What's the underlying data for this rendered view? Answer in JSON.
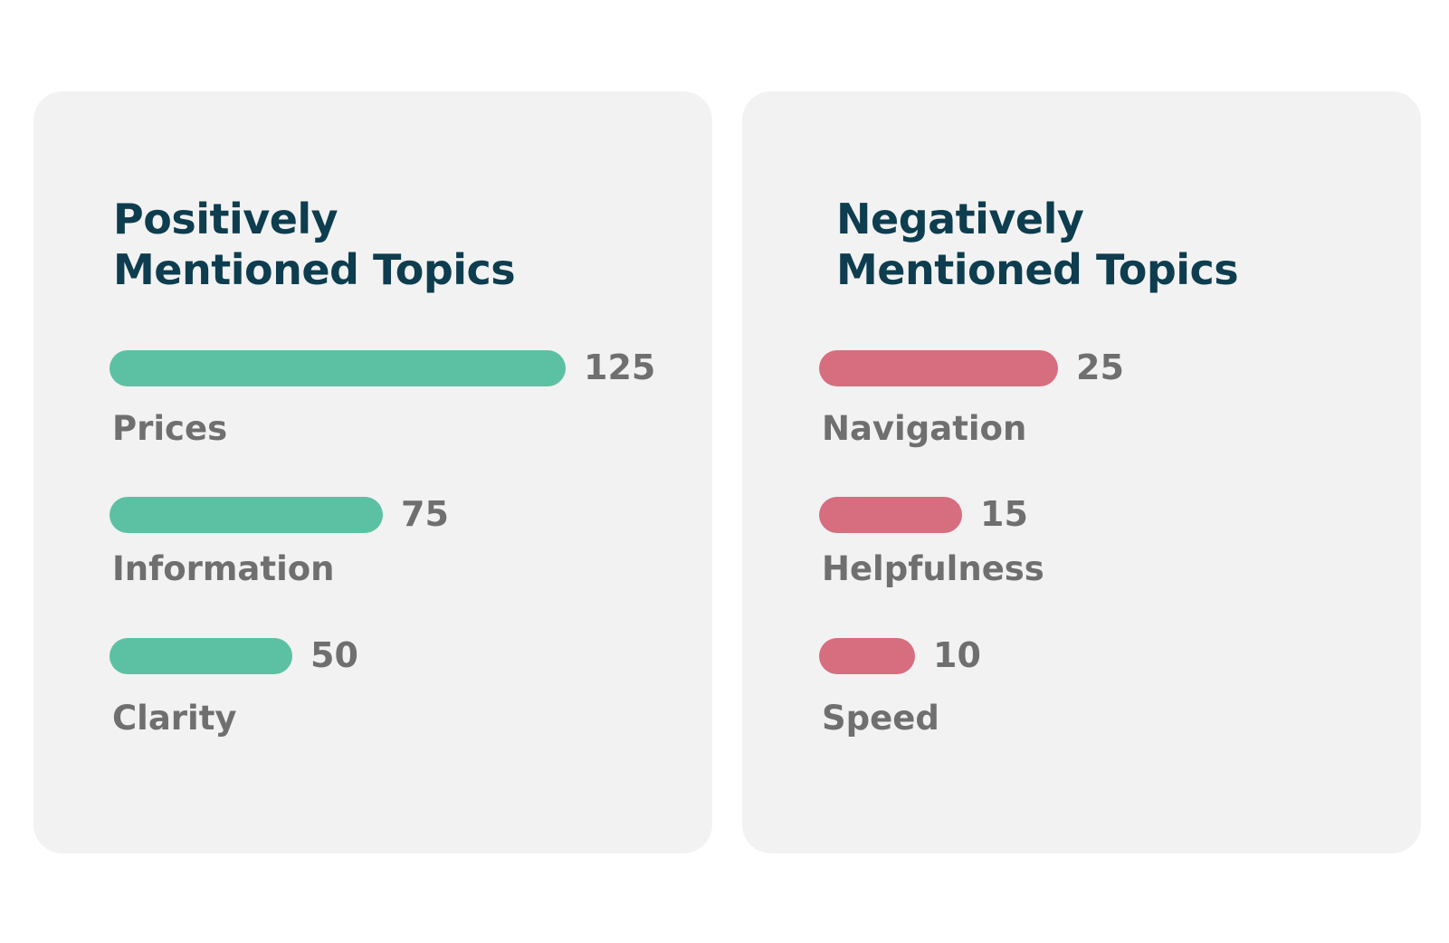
{
  "colors": {
    "positive_bar": "#5cc1a2",
    "negative_bar": "#d66e80",
    "title": "#0d3d4e",
    "label": "#6f6f6f",
    "card_background": "#f2f2f2"
  },
  "chart_data": [
    {
      "type": "bar",
      "orientation": "horizontal",
      "title_lines": [
        "Positively",
        "Mentioned Topics"
      ],
      "title": "Positively Mentioned Topics",
      "categories": [
        "Prices",
        "Information",
        "Clarity"
      ],
      "values": [
        125,
        75,
        50
      ],
      "value_labels": [
        "125",
        "75",
        "50"
      ],
      "xlim": [
        0,
        125
      ],
      "grid": false,
      "color": "#5cc1a2"
    },
    {
      "type": "bar",
      "orientation": "horizontal",
      "title_lines": [
        "Negatively",
        "Mentioned Topics"
      ],
      "title": "Negatively Mentioned Topics",
      "categories": [
        "Navigation",
        "Helpfulness",
        "Speed"
      ],
      "values": [
        25,
        15,
        10
      ],
      "value_labels": [
        "25",
        "15",
        "10"
      ],
      "xlim": [
        0,
        25
      ],
      "grid": false,
      "color": "#d66e80"
    }
  ]
}
